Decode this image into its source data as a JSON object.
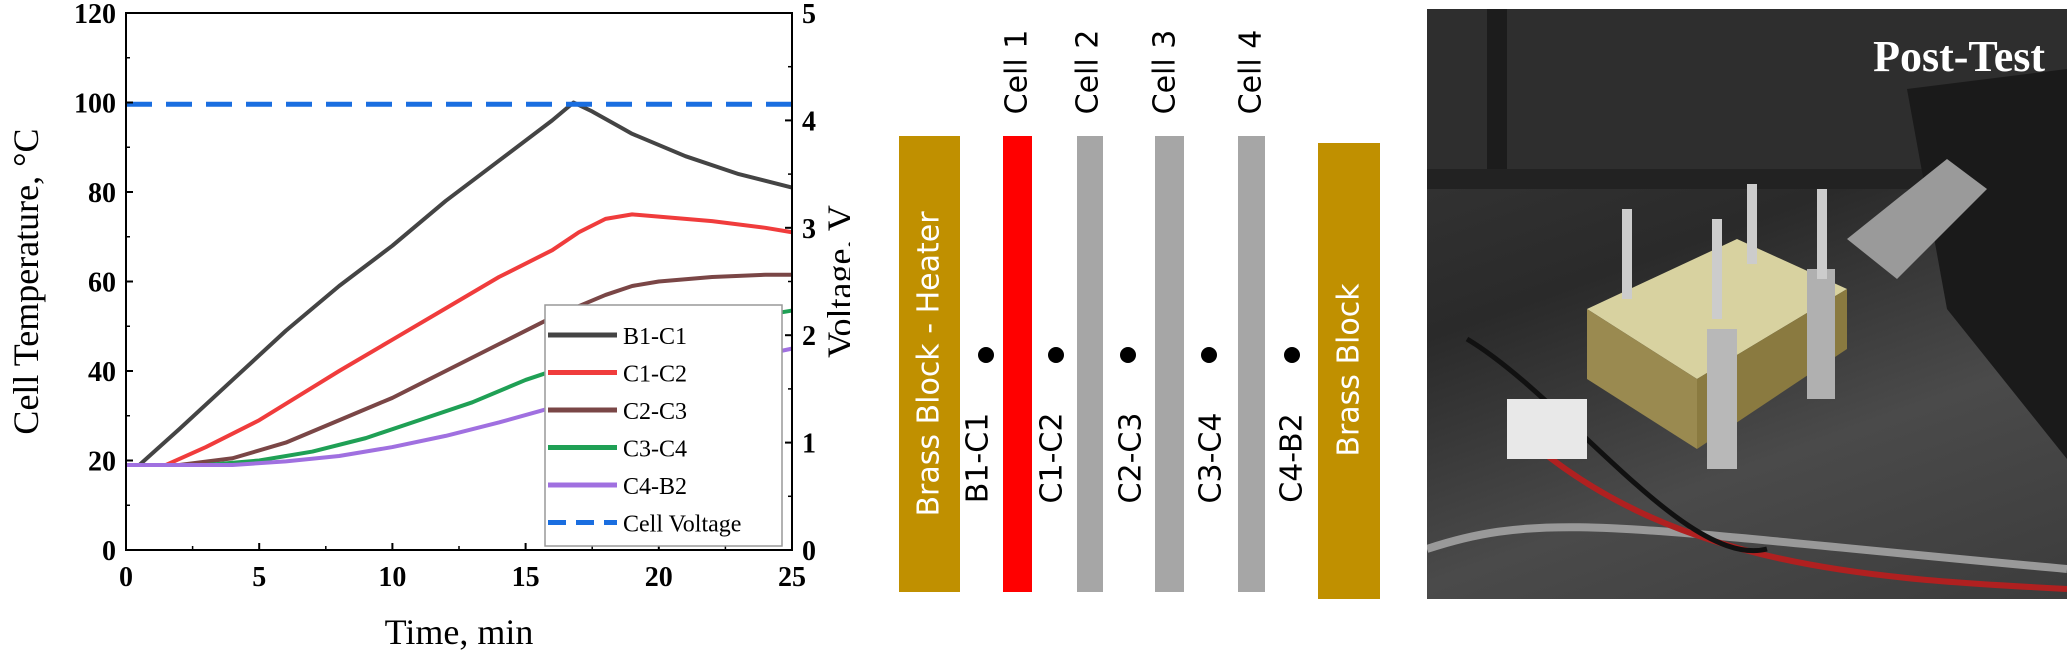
{
  "chart_data": {
    "type": "line",
    "xlabel": "Time, min",
    "ylabel": "Cell Temperature, °C",
    "y2label": "Voltage, V",
    "xlim": [
      0,
      25
    ],
    "ylim": [
      0,
      120
    ],
    "y2lim": [
      0,
      5
    ],
    "xticks": [
      "0",
      "5",
      "10",
      "15",
      "20",
      "25"
    ],
    "yticks": [
      "0",
      "20",
      "40",
      "60",
      "80",
      "100",
      "120"
    ],
    "y2ticks": [
      "0",
      "1",
      "2",
      "3",
      "4",
      "5"
    ],
    "legend_position": "bottom-right",
    "series": [
      {
        "name": "B1-C1",
        "color": "#444444",
        "axis": "left",
        "x": [
          0,
          0.5,
          2,
          4,
          6,
          8,
          10,
          12,
          14,
          16,
          16.8,
          17.5,
          19,
          21,
          23,
          25
        ],
        "y": [
          19,
          19,
          27,
          38,
          49,
          59,
          68,
          78,
          87,
          96,
          100,
          98,
          93,
          88,
          84,
          81
        ]
      },
      {
        "name": "C1-C2",
        "color": "#f03c3c",
        "axis": "left",
        "x": [
          0,
          1.5,
          3,
          5,
          8,
          10,
          12,
          14,
          16,
          17,
          18,
          19,
          20,
          22,
          24,
          25
        ],
        "y": [
          19,
          19,
          23,
          29,
          40,
          47,
          54,
          61,
          67,
          71,
          74,
          75,
          74.5,
          73.5,
          72,
          71
        ]
      },
      {
        "name": "C2-C3",
        "color": "#7a4646",
        "axis": "left",
        "x": [
          0,
          2,
          4,
          6,
          8,
          10,
          12,
          14,
          16,
          18,
          19,
          20,
          22,
          24,
          25
        ],
        "y": [
          19,
          19,
          20.5,
          24,
          29,
          34,
          40,
          46,
          52,
          57,
          59,
          60,
          61,
          61.5,
          61.5
        ]
      },
      {
        "name": "C3-C4",
        "color": "#1fa055",
        "axis": "left",
        "x": [
          0,
          3,
          5,
          7,
          9,
          11,
          13,
          15,
          17,
          19,
          21,
          23,
          25
        ],
        "y": [
          19,
          19,
          20,
          22,
          25,
          29,
          33,
          38,
          42,
          46,
          49,
          51.5,
          53.5
        ]
      },
      {
        "name": "C4-B2",
        "color": "#a070e0",
        "axis": "left",
        "x": [
          0,
          4,
          6,
          8,
          10,
          12,
          14,
          15.5,
          17,
          19,
          21,
          23,
          25
        ],
        "y": [
          19,
          19,
          19.8,
          21,
          23,
          25.5,
          28.5,
          31,
          33.5,
          37,
          40,
          42.5,
          45
        ]
      },
      {
        "name": "Cell Voltage",
        "color": "#1a6ee0",
        "axis": "right",
        "dashed": true,
        "x": [
          0,
          25
        ],
        "y": [
          4.15,
          4.15
        ]
      }
    ]
  },
  "diagram": {
    "left_block": "Brass Block - Heater",
    "right_block": "Brass Block",
    "cells": [
      "Cell 1",
      "Cell 2",
      "Cell 3",
      "Cell 4"
    ],
    "junctions": [
      "B1-C1",
      "C1-C2",
      "C2-C3",
      "C3-C4",
      "C4-B2"
    ],
    "colors": {
      "brass": "#c09000",
      "active_cell": "#ff0000",
      "cell": "#a6a6a6"
    }
  },
  "photo": {
    "title": "Post-Test"
  }
}
